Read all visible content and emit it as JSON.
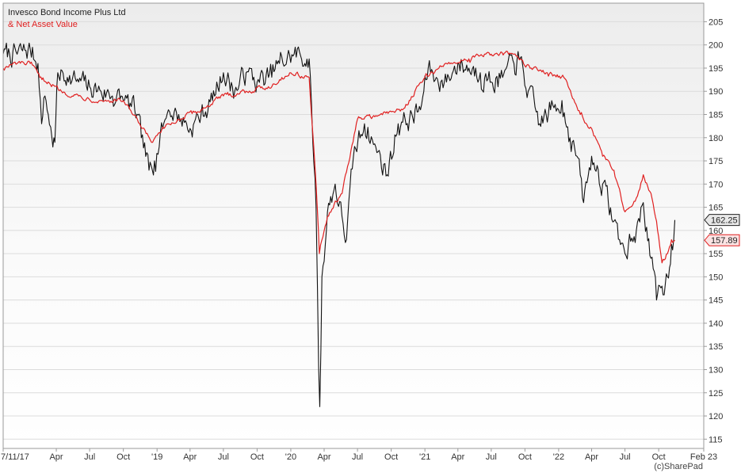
{
  "chart_data": {
    "type": "line",
    "legend": {
      "placement": "top-left"
    },
    "grid": true,
    "x_ticks": [
      "7/11/17",
      "Apr",
      "Jul",
      "Oct",
      "'19",
      "Apr",
      "Jul",
      "Oct",
      "'20",
      "Apr",
      "Jul",
      "Oct",
      "'21",
      "Apr",
      "Jul",
      "Oct",
      "'22",
      "Apr",
      "Jul",
      "Oct",
      "Feb 23"
    ],
    "x_range": [
      "2017-11-07",
      "2023-02-01"
    ],
    "y_ticks": [
      205,
      200,
      195,
      190,
      185,
      180,
      175,
      170,
      165,
      160,
      155,
      150,
      145,
      140,
      135,
      130,
      125,
      120,
      115
    ],
    "ylim": [
      113,
      209
    ],
    "series": [
      {
        "name": "Invesco Bond Income Plus Ltd",
        "color": "#111111",
        "last_value": "162.25",
        "points": [
          [
            "2017-11-07",
            198
          ],
          [
            "2017-12-15",
            198
          ],
          [
            "2018-01-20",
            199
          ],
          [
            "2018-02-10",
            196
          ],
          [
            "2018-02-20",
            183
          ],
          [
            "2018-03-01",
            189
          ],
          [
            "2018-03-10",
            185
          ],
          [
            "2018-03-20",
            180
          ],
          [
            "2018-03-28",
            179
          ],
          [
            "2018-04-05",
            194
          ],
          [
            "2018-05-01",
            193
          ],
          [
            "2018-06-01",
            192
          ],
          [
            "2018-07-01",
            191
          ],
          [
            "2018-08-01",
            190
          ],
          [
            "2018-09-01",
            189
          ],
          [
            "2018-10-01",
            188
          ],
          [
            "2018-11-01",
            186
          ],
          [
            "2018-12-10",
            173
          ],
          [
            "2018-12-25",
            175
          ],
          [
            "2019-01-10",
            181
          ],
          [
            "2019-02-01",
            186
          ],
          [
            "2019-03-01",
            185
          ],
          [
            "2019-04-01",
            182
          ],
          [
            "2019-05-01",
            185
          ],
          [
            "2019-06-01",
            188
          ],
          [
            "2019-07-01",
            194
          ],
          [
            "2019-08-01",
            190
          ],
          [
            "2019-09-01",
            194
          ],
          [
            "2019-10-01",
            192
          ],
          [
            "2019-11-01",
            193
          ],
          [
            "2019-12-01",
            196
          ],
          [
            "2020-01-10",
            198
          ],
          [
            "2020-02-20",
            197
          ],
          [
            "2020-03-01",
            179
          ],
          [
            "2020-03-10",
            165
          ],
          [
            "2020-03-17",
            130
          ],
          [
            "2020-03-20",
            122
          ],
          [
            "2020-03-26",
            150
          ],
          [
            "2020-04-10",
            164
          ],
          [
            "2020-05-01",
            170
          ],
          [
            "2020-06-01",
            158
          ],
          [
            "2020-06-20",
            176
          ],
          [
            "2020-07-20",
            183
          ],
          [
            "2020-08-20",
            178
          ],
          [
            "2020-09-20",
            172
          ],
          [
            "2020-10-20",
            183
          ],
          [
            "2020-11-20",
            184
          ],
          [
            "2020-12-20",
            186
          ],
          [
            "2021-01-10",
            195
          ],
          [
            "2021-02-01",
            193
          ],
          [
            "2021-03-01",
            192
          ],
          [
            "2021-04-01",
            196
          ],
          [
            "2021-05-01",
            195
          ],
          [
            "2021-06-01",
            194
          ],
          [
            "2021-07-01",
            192
          ],
          [
            "2021-08-01",
            193
          ],
          [
            "2021-09-01",
            196
          ],
          [
            "2021-09-15",
            197
          ],
          [
            "2021-10-10",
            190
          ],
          [
            "2021-11-10",
            183
          ],
          [
            "2021-12-10",
            186
          ],
          [
            "2022-01-10",
            188
          ],
          [
            "2022-02-01",
            180
          ],
          [
            "2022-02-20",
            176
          ],
          [
            "2022-03-10",
            166
          ],
          [
            "2022-04-01",
            176
          ],
          [
            "2022-05-01",
            170
          ],
          [
            "2022-06-01",
            162
          ],
          [
            "2022-07-01",
            155
          ],
          [
            "2022-08-01",
            160
          ],
          [
            "2022-08-20",
            166
          ],
          [
            "2022-09-10",
            154
          ],
          [
            "2022-09-25",
            145
          ],
          [
            "2022-10-10",
            148
          ],
          [
            "2022-10-25",
            150
          ],
          [
            "2022-11-05",
            157
          ],
          [
            "2022-11-14",
            162.25
          ]
        ]
      },
      {
        "name": "& Net Asset Value",
        "color": "#e02020",
        "last_value": "157.89",
        "points": [
          [
            "2017-11-07",
            195
          ],
          [
            "2017-12-15",
            196
          ],
          [
            "2018-01-20",
            196
          ],
          [
            "2018-02-15",
            193
          ],
          [
            "2018-03-10",
            192
          ],
          [
            "2018-04-15",
            190
          ],
          [
            "2018-06-01",
            189
          ],
          [
            "2018-08-01",
            188
          ],
          [
            "2018-10-01",
            188
          ],
          [
            "2018-11-20",
            182
          ],
          [
            "2018-12-20",
            179
          ],
          [
            "2019-01-20",
            182
          ],
          [
            "2019-03-01",
            184
          ],
          [
            "2019-05-01",
            186
          ],
          [
            "2019-07-01",
            189
          ],
          [
            "2019-09-01",
            190
          ],
          [
            "2019-11-01",
            191
          ],
          [
            "2020-01-01",
            194
          ],
          [
            "2020-02-20",
            193
          ],
          [
            "2020-03-10",
            170
          ],
          [
            "2020-03-19",
            155
          ],
          [
            "2020-04-10",
            163
          ],
          [
            "2020-05-20",
            168
          ],
          [
            "2020-07-01",
            184
          ],
          [
            "2020-09-01",
            185
          ],
          [
            "2020-11-01",
            186
          ],
          [
            "2021-01-01",
            193
          ],
          [
            "2021-03-01",
            196
          ],
          [
            "2021-05-01",
            197
          ],
          [
            "2021-07-01",
            198
          ],
          [
            "2021-09-01",
            198
          ],
          [
            "2021-10-15",
            195
          ],
          [
            "2021-12-01",
            194
          ],
          [
            "2022-01-15",
            193
          ],
          [
            "2022-03-01",
            185
          ],
          [
            "2022-04-01",
            182
          ],
          [
            "2022-05-01",
            176
          ],
          [
            "2022-06-01",
            173
          ],
          [
            "2022-07-01",
            164
          ],
          [
            "2022-08-01",
            167
          ],
          [
            "2022-08-20",
            172
          ],
          [
            "2022-09-10",
            168
          ],
          [
            "2022-09-25",
            162
          ],
          [
            "2022-10-10",
            153
          ],
          [
            "2022-10-25",
            155
          ],
          [
            "2022-11-05",
            158
          ],
          [
            "2022-11-14",
            157.89
          ]
        ]
      }
    ]
  },
  "credit": "(c)SharePad"
}
